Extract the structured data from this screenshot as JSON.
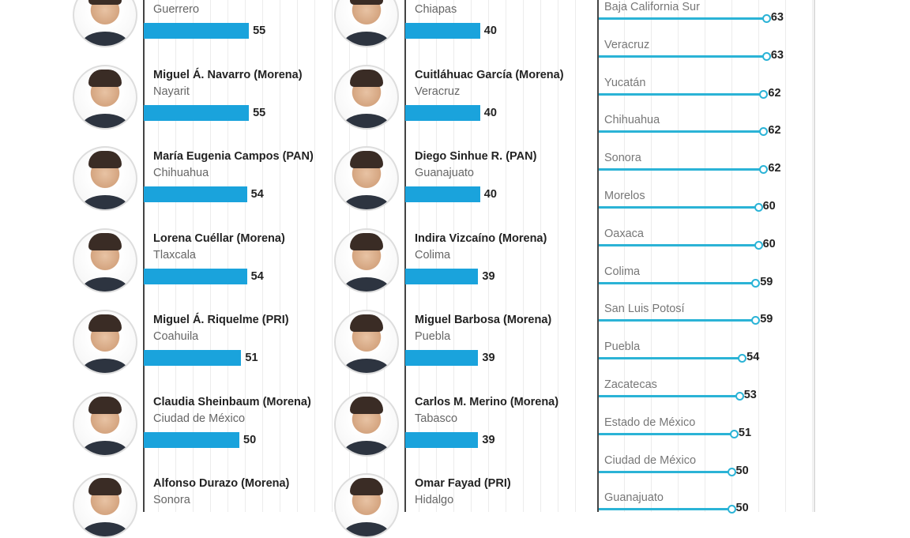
{
  "colors": {
    "bar": "#1aa3dc",
    "lollipop": "#2bb3d6"
  },
  "chart_data": [
    {
      "type": "bar",
      "orientation": "horizontal",
      "items": [
        {
          "name": "",
          "state": "Guerrero",
          "value": 55
        },
        {
          "name": "Miguel Á. Navarro (Morena)",
          "state": "Nayarit",
          "value": 55
        },
        {
          "name": "María Eugenia Campos (PAN)",
          "state": "Chihuahua",
          "value": 54
        },
        {
          "name": "Lorena Cuéllar (Morena)",
          "state": "Tlaxcala",
          "value": 54
        },
        {
          "name": "Miguel Á. Riquelme (PRI)",
          "state": "Coahuila",
          "value": 51
        },
        {
          "name": "Claudia Sheinbaum (Morena)",
          "state": "Ciudad de México",
          "value": 50
        },
        {
          "name": "Alfonso Durazo (Morena)",
          "state": "Sonora",
          "value": null
        }
      ]
    },
    {
      "type": "bar",
      "orientation": "horizontal",
      "items": [
        {
          "name": "",
          "state": "Chiapas",
          "value": 40
        },
        {
          "name": "Cuitláhuac García (Morena)",
          "state": "Veracruz",
          "value": 40
        },
        {
          "name": "Diego Sinhue R. (PAN)",
          "state": "Guanajuato",
          "value": 40
        },
        {
          "name": "Indira Vizcaíno (Morena)",
          "state": "Colima",
          "value": 39
        },
        {
          "name": "Miguel Barbosa (Morena)",
          "state": "Puebla",
          "value": 39
        },
        {
          "name": "Carlos M. Merino (Morena)",
          "state": "Tabasco",
          "value": 39
        },
        {
          "name": "Omar Fayad (PRI)",
          "state": "Hidalgo",
          "value": null
        }
      ]
    },
    {
      "type": "lollipop",
      "items": [
        {
          "state": "Baja California Sur",
          "value": 63
        },
        {
          "state": "Veracruz",
          "value": 63
        },
        {
          "state": "Yucatán",
          "value": 62
        },
        {
          "state": "Chihuahua",
          "value": 62
        },
        {
          "state": "Sonora",
          "value": 62
        },
        {
          "state": "Morelos",
          "value": 60
        },
        {
          "state": "Oaxaca",
          "value": 60
        },
        {
          "state": "Colima",
          "value": 59
        },
        {
          "state": "San Luis Potosí",
          "value": 59
        },
        {
          "state": "Puebla",
          "value": 54
        },
        {
          "state": "Zacatecas",
          "value": 53
        },
        {
          "state": "Estado de México",
          "value": 51
        },
        {
          "state": "Ciudad de México",
          "value": 50
        },
        {
          "state": "Guanajuato",
          "value": 50
        }
      ]
    }
  ]
}
